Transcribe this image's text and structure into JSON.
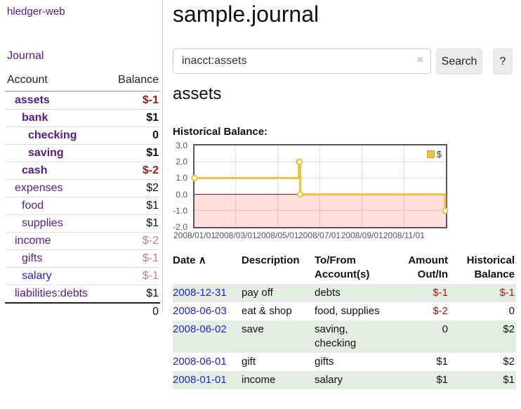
{
  "app_title": "hledger-web",
  "sidebar": {
    "journal_link": "Journal",
    "accounts": {
      "header": {
        "account": "Account",
        "balance": "Balance"
      },
      "rows": [
        {
          "name": "assets",
          "balance": "$-1",
          "level": 1,
          "emphasis": true,
          "negative": "strong"
        },
        {
          "name": "bank",
          "balance": "$1",
          "level": 2,
          "emphasis": true
        },
        {
          "name": "checking",
          "balance": "0",
          "level": 3,
          "emphasis": true
        },
        {
          "name": "saving",
          "balance": "$1",
          "level": 3,
          "emphasis": true
        },
        {
          "name": "cash",
          "balance": "$-2",
          "level": 2,
          "emphasis": true,
          "negative": "strong"
        },
        {
          "name": "expenses",
          "balance": "$2",
          "level": 1
        },
        {
          "name": "food",
          "balance": "$1",
          "level": 2
        },
        {
          "name": "supplies",
          "balance": "$1",
          "level": 2
        },
        {
          "name": "income",
          "balance": "$-2",
          "level": 1,
          "negative": "soft"
        },
        {
          "name": "gifts",
          "balance": "$-1",
          "level": 2,
          "negative": "soft"
        },
        {
          "name": "salary",
          "balance": "$-1",
          "level": 2,
          "negative": "soft"
        },
        {
          "name": "liabilities:debts",
          "balance": "$1",
          "level": 1
        }
      ],
      "total": "0"
    }
  },
  "header": {
    "title": "sample.journal",
    "search": {
      "value": "inacct:assets",
      "clear_icon": "×",
      "search_button": "Search",
      "help_button": "?"
    }
  },
  "account_page": {
    "heading": "assets",
    "chart_title": "Historical Balance:"
  },
  "chart_data": {
    "type": "line",
    "step": true,
    "title": "Historical Balance",
    "series": [
      {
        "name": "$",
        "x": [
          "2008-01-01",
          "2008-06-01",
          "2008-06-02",
          "2008-06-03",
          "2008-12-31"
        ],
        "values": [
          1,
          2,
          2,
          0,
          -1
        ]
      }
    ],
    "xlim": [
      "2008-01-01",
      "2009-01-01"
    ],
    "ylim": [
      -2,
      3
    ],
    "yticks": [
      "3.0",
      "2.0",
      "1.0",
      "0.0",
      "-1.0",
      "-2.0"
    ],
    "ytick_values": [
      3,
      2,
      1,
      0,
      -1,
      -2
    ],
    "xticks": [
      "2008/01/01",
      "2008/03/01",
      "2008/05/01",
      "2008/07/01",
      "2008/09/01",
      "2008/11/01"
    ],
    "xtick_dates": [
      "2008-01-01",
      "2008-03-01",
      "2008-05-01",
      "2008-07-01",
      "2008-09-01",
      "2008-11-01"
    ],
    "legend": {
      "label": "$",
      "position": "top-right"
    },
    "grid": true,
    "colors": {
      "line": "#edc240",
      "marker_fill": "#ffffff",
      "negative_region": "rgba(255,0,0,0.13)",
      "zero_line": "#8b1a1a",
      "grid": "#dddddd",
      "border": "#565656"
    }
  },
  "register": {
    "columns": [
      {
        "label": "Date",
        "sort_indicator": "∧"
      },
      {
        "label": "Description"
      },
      {
        "label": "To/From Account(s)"
      },
      {
        "label": "Amount Out/In"
      },
      {
        "label": "Historical Balance"
      }
    ],
    "rows": [
      {
        "date": "2008-12-31",
        "description": "pay off",
        "accounts": "debts",
        "amount": "$-1",
        "balance": "$-1"
      },
      {
        "date": "2008-06-03",
        "description": "eat & shop",
        "accounts": "food, supplies",
        "amount": "$-2",
        "balance": "0"
      },
      {
        "date": "2008-06-02",
        "description": "save",
        "accounts": "saving, checking",
        "amount": "0",
        "balance": "$2"
      },
      {
        "date": "2008-06-01",
        "description": "gift",
        "accounts": "gifts",
        "amount": "$1",
        "balance": "$2"
      },
      {
        "date": "2008-01-01",
        "description": "income",
        "accounts": "salary",
        "amount": "$1",
        "balance": "$1"
      }
    ]
  },
  "colors": {
    "link_visited": "#551a8b",
    "link_unvisited": "#2222dd",
    "negative_strong": "#a11b1b",
    "negative_soft": "#bb8383",
    "row_stripe": "#e3ede1"
  }
}
